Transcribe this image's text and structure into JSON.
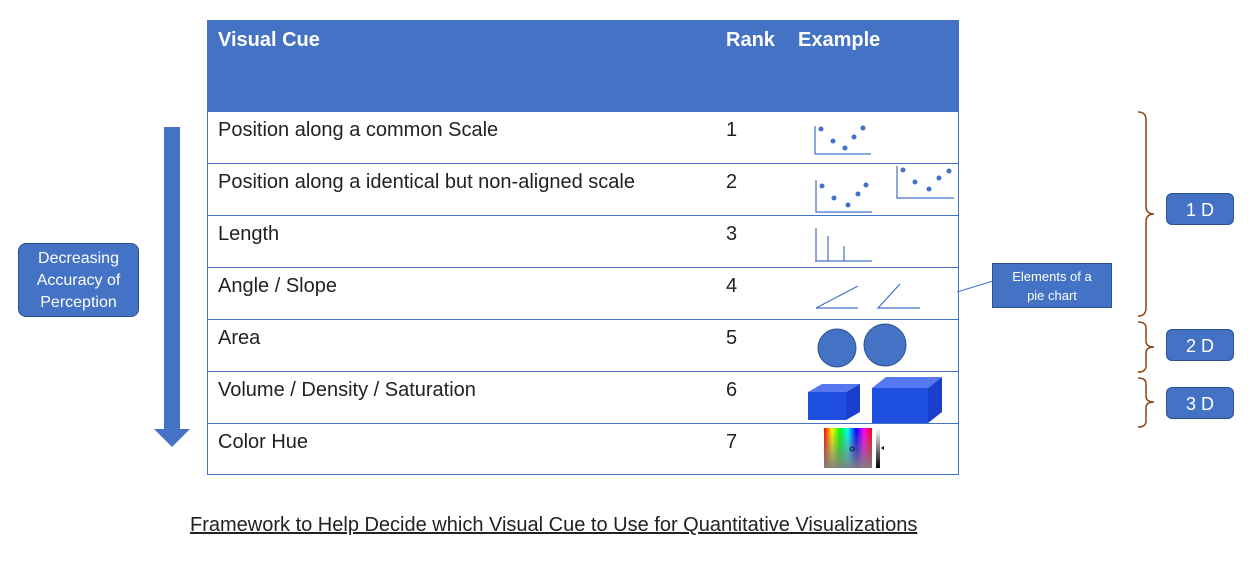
{
  "header": {
    "cue": "Visual Cue",
    "rank": "Rank",
    "example": "Example"
  },
  "rows": [
    {
      "cue": "Position along a common Scale",
      "rank": "1"
    },
    {
      "cue": "Position along a identical but non-aligned scale",
      "rank": "2"
    },
    {
      "cue": "Length",
      "rank": "3"
    },
    {
      "cue": "Angle / Slope",
      "rank": "4"
    },
    {
      "cue": "Area",
      "rank": "5"
    },
    {
      "cue": "Volume / Density / Saturation",
      "rank": "6"
    },
    {
      "cue": "Color Hue",
      "rank": "7"
    }
  ],
  "arrow_label": [
    "Decreasing",
    "Accuracy of",
    "Perception"
  ],
  "badges": {
    "one_d": "1 D",
    "two_d": "2 D",
    "three_d": "3 D"
  },
  "callout": [
    "Elements of a",
    "pie chart"
  ],
  "caption": "Framework to Help Decide which Visual Cue to Use for Quantitative Visualizations",
  "colors": {
    "accent": "#4472C4",
    "brace": "#8B4513",
    "volume": "#1F4FE0"
  }
}
